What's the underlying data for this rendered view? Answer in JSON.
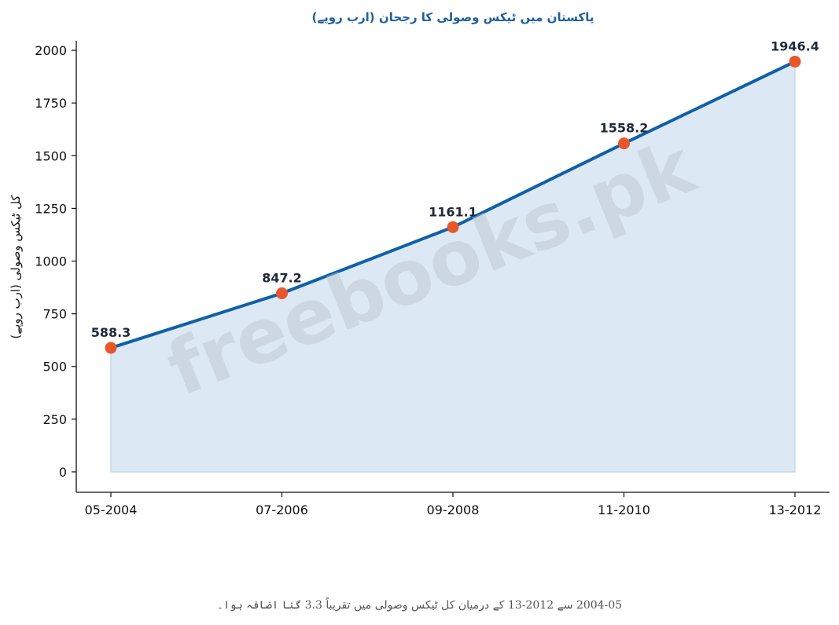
{
  "watermark": "freebooks.pk",
  "caption": "2004-05 سے 2012-13 کے درمیان کل ٹیکس وصولی میں تقریباً 3.3 گنا اضافہ ہوا۔",
  "colors": {
    "line": "#1060a8",
    "marker": "#e8572a",
    "fill": "#dce8f3",
    "title": "#1f5f9e"
  },
  "chart_data": {
    "type": "area",
    "title": "پاکستان میں ٹیکس وصولی کا رجحان (ارب روپے)",
    "xlabel": "",
    "ylabel": "کل ٹیکس وصولی (ارب روپے)",
    "categories": [
      "05-2004",
      "07-2006",
      "09-2008",
      "11-2010",
      "13-2012"
    ],
    "values": [
      588.3,
      847.2,
      1161.1,
      1558.2,
      1946.4
    ],
    "value_labels": [
      "588.3",
      "847.2",
      "1161.1",
      "1558.2",
      "1946.4"
    ],
    "yticks": [
      0,
      250,
      500,
      750,
      1000,
      1250,
      1500,
      1750,
      2000
    ],
    "ylim": [
      -97,
      2045
    ],
    "grid": false,
    "legend": "none"
  }
}
